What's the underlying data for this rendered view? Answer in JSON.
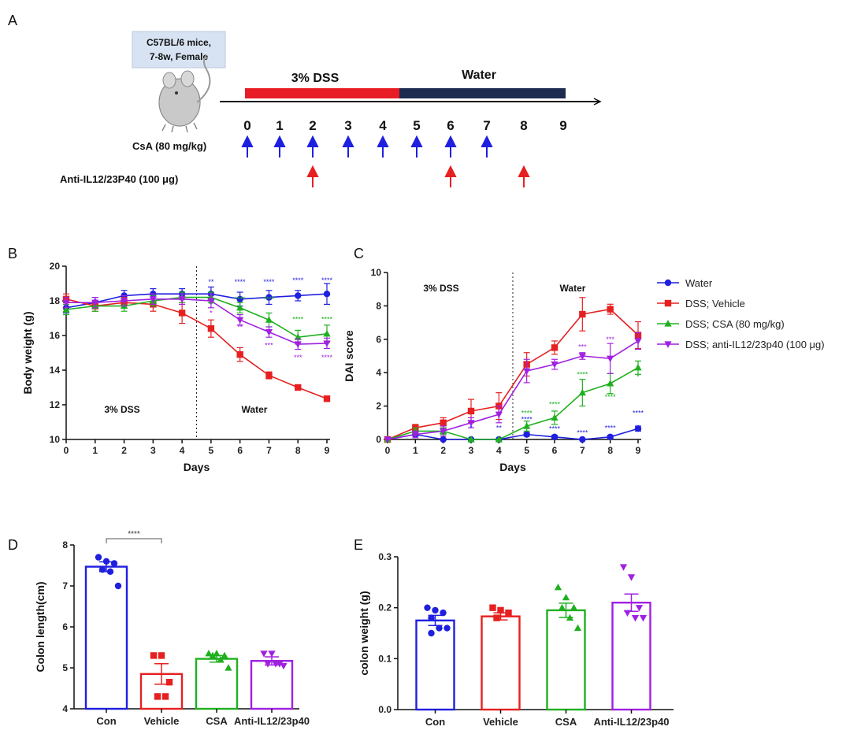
{
  "panels": {
    "a": "A",
    "b": "B",
    "c": "C",
    "d": "D",
    "e": "E"
  },
  "colors": {
    "water": "#1f1fe0",
    "vehicle": "#e62020",
    "csa": "#1fb01f",
    "anti": "#a020e0",
    "dss_bar": "#e81c24",
    "water_bar": "#1c2b4f"
  },
  "icons": [
    "mouse-icon",
    "arrow-up-icon"
  ],
  "schematic": {
    "mouse_label_1": "C57BL/6 mice,",
    "mouse_label_2": "7-8w, Female",
    "phase_dss": "3% DSS",
    "phase_water": "Water",
    "days": [
      "0",
      "1",
      "2",
      "3",
      "4",
      "5",
      "6",
      "7",
      "8",
      "9"
    ],
    "csa_label": "CsA (80 mg/kg)",
    "anti_label": "Anti-IL12/23P40 (100 μg)",
    "csa_days": [
      0,
      1,
      2,
      3,
      4,
      5,
      6,
      7
    ],
    "anti_days": [
      2,
      6,
      8
    ]
  },
  "legend": [
    "Water",
    "DSS; Vehicle",
    "DSS; CSA (80 mg/kg)",
    "DSS; anti-IL12/23p40 (100 μg)"
  ],
  "chart_data": [
    {
      "id": "B",
      "type": "line",
      "xlabel": "Days",
      "ylabel": "Body weight (g)",
      "xlim": [
        0,
        9
      ],
      "ylim": [
        10,
        20
      ],
      "x_ticks": [
        "0",
        "1",
        "2",
        "3",
        "4",
        "5",
        "6",
        "7",
        "8",
        "9"
      ],
      "y_ticks": [
        "10",
        "12",
        "14",
        "16",
        "18",
        "20"
      ],
      "x": [
        0,
        1,
        2,
        3,
        4,
        5,
        6,
        7,
        8,
        9
      ],
      "phase_divider_x": 4.5,
      "phase_labels": [
        "3% DSS",
        "Water"
      ],
      "series": [
        {
          "name": "Water",
          "values": [
            17.6,
            17.9,
            18.3,
            18.4,
            18.4,
            18.4,
            18.1,
            18.2,
            18.3,
            18.4
          ],
          "err": [
            0.3,
            0.3,
            0.3,
            0.3,
            0.3,
            0.4,
            0.4,
            0.4,
            0.3,
            0.6
          ]
        },
        {
          "name": "DSS; Vehicle",
          "values": [
            18.1,
            17.7,
            17.9,
            17.8,
            17.3,
            16.4,
            14.9,
            13.7,
            13.0,
            12.35
          ],
          "err": [
            0.3,
            0.3,
            0.3,
            0.4,
            0.6,
            0.5,
            0.4,
            0.2,
            0.1,
            0.1
          ]
        },
        {
          "name": "DSS; CSA (80 mg/kg)",
          "values": [
            17.5,
            17.7,
            17.7,
            18.0,
            18.2,
            18.2,
            17.6,
            16.9,
            15.9,
            16.1
          ],
          "err": [
            0.3,
            0.3,
            0.3,
            0.3,
            0.3,
            0.3,
            0.3,
            0.4,
            0.4,
            0.5
          ]
        },
        {
          "name": "DSS; anti-IL12/23p40 (100 μg)",
          "values": [
            17.9,
            17.9,
            18.0,
            18.1,
            18.1,
            18.0,
            16.9,
            16.2,
            15.5,
            15.55
          ],
          "err": [
            0.3,
            0.3,
            0.3,
            0.3,
            0.3,
            0.4,
            0.3,
            0.3,
            0.3,
            0.3
          ]
        }
      ],
      "annotations": [
        {
          "x": 5,
          "y": 18.95,
          "text": "**",
          "series": 0
        },
        {
          "x": 6,
          "y": 18.95,
          "text": "****",
          "series": 0
        },
        {
          "x": 7,
          "y": 18.95,
          "text": "****",
          "series": 0
        },
        {
          "x": 8,
          "y": 19.05,
          "text": "****",
          "series": 0
        },
        {
          "x": 9,
          "y": 19.05,
          "text": "****",
          "series": 0
        },
        {
          "x": 5,
          "y": 17.65,
          "text": "**",
          "series": 2
        },
        {
          "x": 6,
          "y": 17.95,
          "text": "****",
          "series": 2
        },
        {
          "x": 7,
          "y": 17.95,
          "text": "****",
          "series": 2
        },
        {
          "x": 8,
          "y": 16.8,
          "text": "****",
          "series": 2
        },
        {
          "x": 9,
          "y": 16.8,
          "text": "****",
          "series": 2
        },
        {
          "x": 5,
          "y": 17.15,
          "text": "*",
          "series": 3
        },
        {
          "x": 6,
          "y": 16.35,
          "text": "**",
          "series": 3
        },
        {
          "x": 7,
          "y": 15.3,
          "text": "***",
          "series": 3
        },
        {
          "x": 8,
          "y": 14.6,
          "text": "***",
          "series": 3
        },
        {
          "x": 9,
          "y": 14.6,
          "text": "****",
          "series": 3
        }
      ]
    },
    {
      "id": "C",
      "type": "line",
      "xlabel": "Days",
      "ylabel": "DAI score",
      "xlim": [
        0,
        9
      ],
      "ylim": [
        0,
        10
      ],
      "x_ticks": [
        "0",
        "1",
        "2",
        "3",
        "4",
        "5",
        "6",
        "7",
        "8",
        "9"
      ],
      "y_ticks": [
        "0",
        "2",
        "4",
        "6",
        "8",
        "10"
      ],
      "x": [
        0,
        1,
        2,
        3,
        4,
        5,
        6,
        7,
        8,
        9
      ],
      "phase_divider_x": 4.5,
      "phase_labels": [
        "3% DSS",
        "Water"
      ],
      "series": [
        {
          "name": "Water",
          "values": [
            0,
            0.3,
            0.0,
            0.0,
            0.0,
            0.3,
            0.15,
            0.0,
            0.15,
            0.65
          ],
          "err": [
            0,
            0.1,
            0,
            0,
            0,
            0.1,
            0.1,
            0,
            0.1,
            0.15
          ]
        },
        {
          "name": "DSS; Vehicle",
          "values": [
            0,
            0.7,
            1.0,
            1.7,
            2.0,
            4.5,
            5.5,
            7.5,
            7.8,
            6.25
          ],
          "err": [
            0,
            0.2,
            0.3,
            0.7,
            0.8,
            0.7,
            0.4,
            1.0,
            0.3,
            0.8
          ]
        },
        {
          "name": "DSS; CSA (80 mg/kg)",
          "values": [
            0,
            0.5,
            0.5,
            0.0,
            0.0,
            0.8,
            1.3,
            2.8,
            3.35,
            4.3
          ],
          "err": [
            0,
            0.2,
            0.2,
            0,
            0,
            0.3,
            0.4,
            0.8,
            0.6,
            0.4
          ]
        },
        {
          "name": "DSS; anti-IL12/23p40 (100 μg)",
          "values": [
            0,
            0.3,
            0.5,
            1.0,
            1.5,
            4.1,
            4.5,
            5.0,
            4.85,
            5.9
          ],
          "err": [
            0,
            0.2,
            0.3,
            0.3,
            0.5,
            0.7,
            0.3,
            0.2,
            0.9,
            0.5
          ]
        }
      ],
      "annotations": [
        {
          "x": 5,
          "y": 1.45,
          "text": "****",
          "series": 2
        },
        {
          "x": 6,
          "y": 1.95,
          "text": "****",
          "series": 2
        },
        {
          "x": 7,
          "y": 3.75,
          "text": "****",
          "series": 2
        },
        {
          "x": 8,
          "y": 2.4,
          "text": "****",
          "series": 2
        },
        {
          "x": 9,
          "y": 3.6,
          "text": "*",
          "series": 2
        },
        {
          "x": 5,
          "y": 1.05,
          "text": "****",
          "series": 0
        },
        {
          "x": 6,
          "y": 0.5,
          "text": "****",
          "series": 0
        },
        {
          "x": 7,
          "y": 0.25,
          "text": "****",
          "series": 0
        },
        {
          "x": 8,
          "y": 0.55,
          "text": "****",
          "series": 0
        },
        {
          "x": 9,
          "y": 1.45,
          "text": "****",
          "series": 0
        },
        {
          "x": 3,
          "y": 0.55,
          "text": "*",
          "series": 0
        },
        {
          "x": 4,
          "y": 0.55,
          "text": "**",
          "series": 0
        },
        {
          "x": 7,
          "y": 5.4,
          "text": "***",
          "series": 3
        },
        {
          "x": 8,
          "y": 5.85,
          "text": "***",
          "series": 3
        }
      ]
    },
    {
      "id": "D",
      "type": "bar",
      "xlabel": "",
      "ylabel": "Colon length(cm)",
      "ylim": [
        4,
        8
      ],
      "y_ticks": [
        "4",
        "5",
        "6",
        "7",
        "8"
      ],
      "categories": [
        "Con",
        "Vehicle",
        "CSA",
        "Anti-IL12/23p40"
      ],
      "values": [
        7.47,
        4.85,
        5.22,
        5.17
      ],
      "err": [
        0.12,
        0.25,
        0.08,
        0.1
      ],
      "points": [
        [
          7.7,
          7.6,
          7.55,
          7.4,
          7.35,
          7.0
        ],
        [
          5.3,
          5.3,
          4.65,
          4.3,
          4.3
        ],
        [
          5.35,
          5.35,
          5.3,
          5.3,
          5.2,
          5.0
        ],
        [
          5.35,
          5.35,
          5.1,
          5.1,
          5.1,
          5.05
        ]
      ],
      "marker_shapes": [
        "circle",
        "square",
        "triangle-up",
        "triangle-down"
      ],
      "significance": {
        "from": 0,
        "to": 1,
        "text": "****"
      }
    },
    {
      "id": "E",
      "type": "bar",
      "xlabel": "",
      "ylabel": "colon weight (g)",
      "ylim": [
        0,
        0.3
      ],
      "y_ticks": [
        "0.0",
        "0.1",
        "0.2",
        "0.3"
      ],
      "categories": [
        "Con",
        "Vehicle",
        "CSA",
        "Anti-IL12/23p40"
      ],
      "values": [
        0.175,
        0.183,
        0.195,
        0.21
      ],
      "err": [
        0.01,
        0.007,
        0.014,
        0.017
      ],
      "points": [
        [
          0.2,
          0.195,
          0.19,
          0.18,
          0.16,
          0.16,
          0.15
        ],
        [
          0.2,
          0.195,
          0.19,
          0.18
        ],
        [
          0.24,
          0.22,
          0.2,
          0.2,
          0.18,
          0.16
        ],
        [
          0.28,
          0.26,
          0.2,
          0.19,
          0.18,
          0.18
        ]
      ],
      "marker_shapes": [
        "circle",
        "square",
        "triangle-up",
        "triangle-down"
      ]
    }
  ]
}
